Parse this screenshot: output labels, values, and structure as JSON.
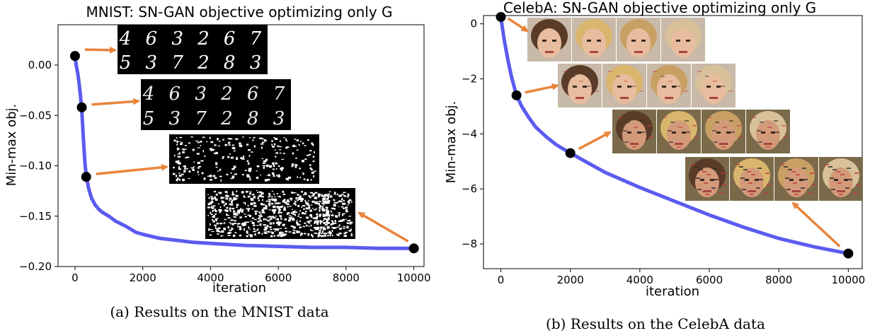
{
  "chart_data": [
    {
      "id": "mnist",
      "type": "line",
      "title": "MNIST: SN-GAN objective optimizing only G",
      "xlabel": "iteration",
      "ylabel": "Min-max obj.",
      "xlim": [
        -500,
        10300
      ],
      "ylim": [
        -0.2,
        0.04
      ],
      "xticks": [
        0,
        2000,
        4000,
        6000,
        8000,
        10000
      ],
      "yticks": [
        0.0,
        -0.05,
        -0.1,
        -0.15,
        -0.2
      ],
      "ytick_labels": [
        "0.00",
        "−0.05",
        "−0.10",
        "−0.15",
        "−0.20"
      ],
      "series": [
        {
          "color": "#5b5bf0",
          "x": [
            0,
            40,
            80,
            120,
            160,
            200,
            260,
            300,
            330,
            360,
            400,
            450,
            500,
            600,
            700,
            800,
            1000,
            1200,
            1500,
            1800,
            2000,
            2500,
            3000,
            3500,
            4000,
            5000,
            6000,
            7000,
            8000,
            9000,
            10000
          ],
          "y": [
            0.009,
            -0.001,
            -0.008,
            -0.018,
            -0.03,
            -0.045,
            -0.08,
            -0.1,
            -0.108,
            -0.115,
            -0.122,
            -0.128,
            -0.133,
            -0.139,
            -0.143,
            -0.146,
            -0.15,
            -0.155,
            -0.16,
            -0.166,
            -0.168,
            -0.172,
            -0.174,
            -0.176,
            -0.177,
            -0.179,
            -0.18,
            -0.181,
            -0.181,
            -0.182,
            -0.182
          ]
        }
      ],
      "markers": [
        {
          "x": 0,
          "y": 0.009
        },
        {
          "x": 200,
          "y": -0.042
        },
        {
          "x": 330,
          "y": -0.111
        },
        {
          "x": 10000,
          "y": -0.182
        }
      ],
      "samples": [
        {
          "label_row1": "4 6 3 2 6 7",
          "label_row2": "5 3 7 2 8 3"
        },
        {
          "label_row1": "4 6 3 2 6 7",
          "label_row2": "5 3 7 2 8 3"
        },
        {
          "label_row1": "",
          "label_row2": ""
        },
        {
          "label_row1": "",
          "label_row2": ""
        }
      ]
    },
    {
      "id": "celeba",
      "type": "line",
      "title": "CelebA: SN-GAN objective optimizing only G",
      "xlabel": "iteration",
      "ylabel": "Min-max obj.",
      "xlim": [
        -500,
        10400
      ],
      "ylim": [
        -8.9,
        0.3
      ],
      "xticks": [
        0,
        2000,
        4000,
        6000,
        8000,
        10000
      ],
      "yticks": [
        0,
        -2,
        -4,
        -6,
        -8
      ],
      "ytick_labels": [
        "0",
        "−2",
        "−4",
        "−6",
        "−8"
      ],
      "series": [
        {
          "color": "#5b5bf0",
          "x": [
            0,
            50,
            100,
            200,
            300,
            450,
            600,
            800,
            1000,
            1300,
            1600,
            2000,
            2500,
            3000,
            4000,
            5000,
            6000,
            7000,
            8000,
            9000,
            10000
          ],
          "y": [
            0.25,
            -0.2,
            -0.6,
            -1.3,
            -1.9,
            -2.6,
            -3.0,
            -3.4,
            -3.75,
            -4.1,
            -4.4,
            -4.7,
            -5.05,
            -5.4,
            -5.95,
            -6.45,
            -6.95,
            -7.4,
            -7.8,
            -8.1,
            -8.35
          ]
        }
      ],
      "markers": [
        {
          "x": 0,
          "y": 0.25
        },
        {
          "x": 450,
          "y": -2.6
        },
        {
          "x": 2000,
          "y": -4.7
        },
        {
          "x": 10000,
          "y": -8.35
        }
      ]
    }
  ],
  "captions": {
    "a": "(a) Results on the MNIST data",
    "b": "(b) Results on the CelebA data"
  },
  "colors": {
    "line": "#5b5bf0",
    "arrow": "#e8843a",
    "marker": "#000000"
  }
}
